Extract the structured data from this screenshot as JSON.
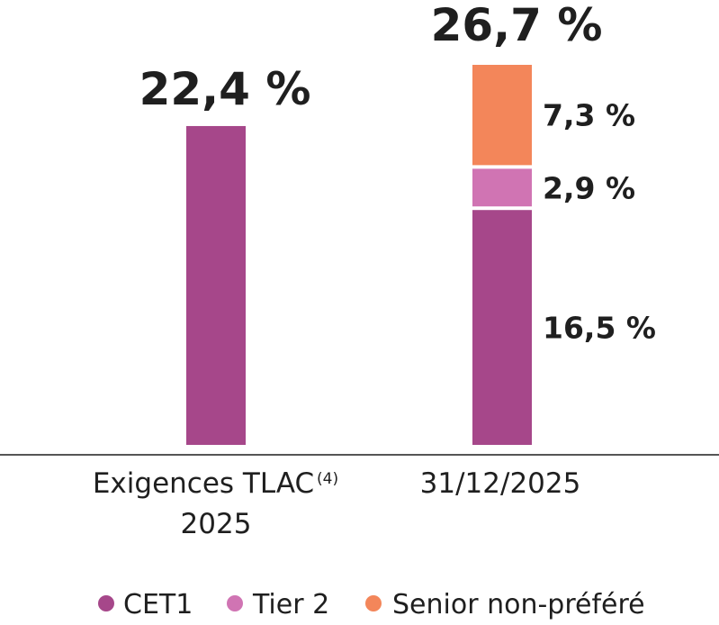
{
  "chart_data": {
    "type": "bar",
    "stacked": true,
    "categories": [
      {
        "label_line1": "Exigences TLAC",
        "label_sup": "(4)",
        "label_line2": "2025",
        "total_label": "22,4 %"
      },
      {
        "label_line1": "31/12/2025",
        "label_sup": "",
        "label_line2": "",
        "total_label": "26,7 %"
      }
    ],
    "series": [
      {
        "name": "CET1",
        "color": "#a6478a",
        "values": [
          22.4,
          16.5
        ],
        "labels": [
          "",
          "16,5 %"
        ]
      },
      {
        "name": "Tier 2",
        "color": "#d074b3",
        "values": [
          0,
          2.9
        ],
        "labels": [
          "",
          "2,9 %"
        ]
      },
      {
        "name": "Senior non-préféré",
        "color": "#f3865a",
        "values": [
          0,
          7.3
        ],
        "labels": [
          "",
          "7,3 %"
        ]
      }
    ],
    "ylim": [
      0,
      26.7
    ],
    "grid": false,
    "legend_position": "bottom",
    "title": "",
    "xlabel": "",
    "ylabel": ""
  },
  "legend": [
    {
      "label": "CET1",
      "color": "#a6478a"
    },
    {
      "label": "Tier 2",
      "color": "#d074b3"
    },
    {
      "label": "Senior non-préféré",
      "color": "#f3865a"
    }
  ],
  "colors": {
    "axis": "#555555",
    "text": "#1f1f1f"
  }
}
